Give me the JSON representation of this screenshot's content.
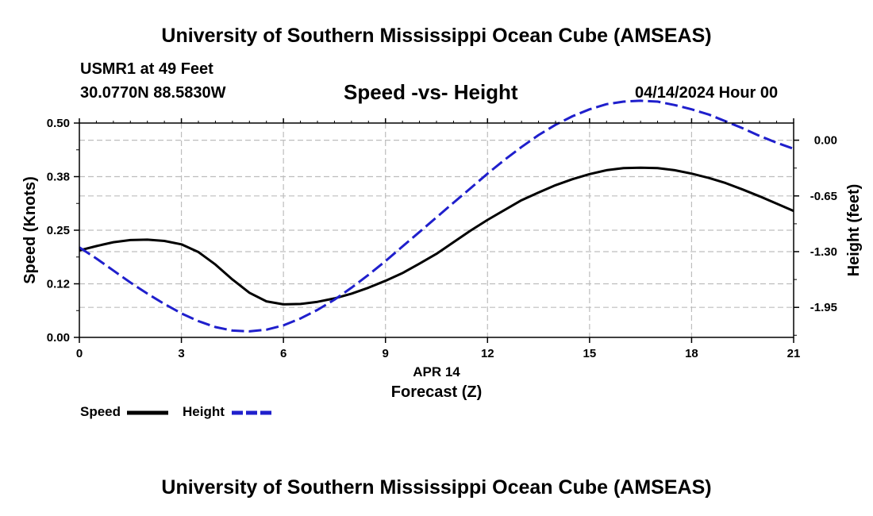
{
  "header": {
    "title": "University of Southern Mississippi Ocean Cube (AMSEAS)",
    "station": "USMR1 at 49 Feet",
    "coords": "30.0770N  88.5830W",
    "subtitle": "Speed -vs- Height",
    "datetime": "04/14/2024 Hour 00"
  },
  "footer": {
    "title": "University of Southern Mississippi Ocean Cube (AMSEAS)"
  },
  "chart_data": {
    "type": "line",
    "title": "Speed -vs- Height",
    "xlabel": "Forecast (Z)",
    "xdate": "APR 14",
    "ylabel": "Speed (Knots)",
    "y2label": "Height (feet)",
    "xlim": [
      0,
      21
    ],
    "ylim": [
      0,
      0.5
    ],
    "y2lim": [
      -2.3,
      0.2
    ],
    "xticks": [
      "0",
      "3",
      "6",
      "9",
      "12",
      "15",
      "18",
      "21"
    ],
    "xtick_values": [
      0,
      3,
      6,
      9,
      12,
      15,
      18,
      21
    ],
    "yticks": [
      "0.00",
      "0.12",
      "0.25",
      "0.38",
      "0.50"
    ],
    "ytick_values": [
      0,
      0.125,
      0.25,
      0.375,
      0.5
    ],
    "y2ticks": [
      "-1.95",
      "-1.30",
      "-0.65",
      "0.00"
    ],
    "y2tick_values": [
      -1.95,
      -1.3,
      -0.65,
      0
    ],
    "grid": true,
    "x": [
      0,
      0.5,
      1,
      1.5,
      2,
      2.5,
      3,
      3.5,
      4,
      4.5,
      5,
      5.5,
      6,
      6.5,
      7,
      7.5,
      8,
      8.5,
      9,
      9.5,
      10,
      10.5,
      11,
      11.5,
      12,
      12.5,
      13,
      13.5,
      14,
      14.5,
      15,
      15.5,
      16,
      16.5,
      17,
      17.5,
      18,
      18.5,
      19,
      19.5,
      20,
      20.5,
      21
    ],
    "series": [
      {
        "name": "Speed",
        "axis": "left",
        "color": "#000000",
        "dash": "solid",
        "values": [
          0.203,
          0.213,
          0.222,
          0.227,
          0.228,
          0.225,
          0.217,
          0.199,
          0.17,
          0.135,
          0.104,
          0.084,
          0.077,
          0.078,
          0.083,
          0.091,
          0.102,
          0.116,
          0.132,
          0.15,
          0.172,
          0.195,
          0.222,
          0.249,
          0.274,
          0.297,
          0.32,
          0.338,
          0.355,
          0.369,
          0.381,
          0.39,
          0.395,
          0.396,
          0.395,
          0.39,
          0.382,
          0.372,
          0.36,
          0.345,
          0.329,
          0.312,
          0.295
        ]
      },
      {
        "name": "Height",
        "axis": "right",
        "color": "#1f1fcc",
        "dash": "dashed",
        "values": [
          -1.25,
          -1.38,
          -1.52,
          -1.66,
          -1.79,
          -1.91,
          -2.02,
          -2.11,
          -2.18,
          -2.22,
          -2.23,
          -2.21,
          -2.16,
          -2.08,
          -1.98,
          -1.86,
          -1.72,
          -1.57,
          -1.41,
          -1.24,
          -1.07,
          -0.9,
          -0.73,
          -0.56,
          -0.39,
          -0.23,
          -0.08,
          0.06,
          0.18,
          0.28,
          0.36,
          0.42,
          0.45,
          0.46,
          0.45,
          0.41,
          0.36,
          0.3,
          0.22,
          0.14,
          0.05,
          -0.03,
          -0.1
        ]
      }
    ],
    "legend": {
      "position": "bottom-left",
      "entries": [
        "Speed",
        "Height"
      ]
    }
  }
}
